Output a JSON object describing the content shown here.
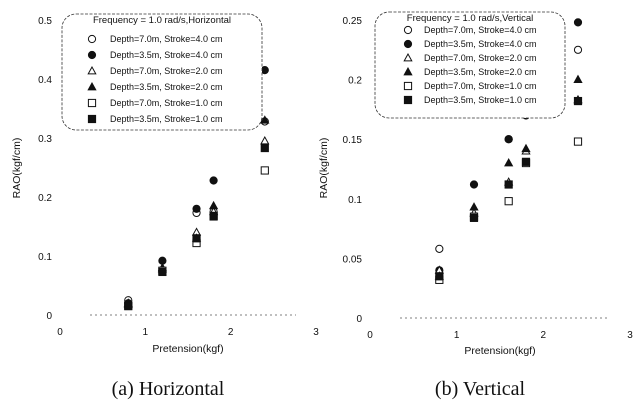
{
  "chart_data": [
    {
      "type": "scatter",
      "caption": "(a)  Horizontal",
      "legend_title": "Frequency = 1.0 rad/s,Horizontal",
      "xlabel": "Pretension(kgf)",
      "ylabel": "RAO(kgf/cm)",
      "xlim": [
        0,
        3
      ],
      "ylim": [
        0,
        0.5
      ],
      "xticks": [
        "0",
        "1",
        "2",
        "3"
      ],
      "yticks": [
        "0",
        "0.1",
        "0.2",
        "0.3",
        "0.4",
        "0.5"
      ],
      "legend_position": "top-center",
      "grid": false,
      "series": [
        {
          "name": "Depth=7.0m, Stroke=4.0 cm",
          "marker": "circle-open",
          "x": [
            0.8,
            1.2,
            1.6,
            1.8,
            2.4
          ],
          "y": [
            0.025,
            0.075,
            0.173,
            0.175,
            0.328
          ]
        },
        {
          "name": "Depth=3.5m, Stroke=4.0 cm",
          "marker": "circle-filled",
          "x": [
            0.8,
            1.2,
            1.6,
            1.8,
            2.4
          ],
          "y": [
            0.02,
            0.092,
            0.18,
            0.228,
            0.415
          ]
        },
        {
          "name": "Depth=7.0m, Stroke=2.0 cm",
          "marker": "triangle-open",
          "x": [
            0.8,
            1.2,
            1.6,
            1.8,
            2.4
          ],
          "y": [
            0.02,
            0.08,
            0.14,
            0.175,
            0.295
          ]
        },
        {
          "name": "Depth=3.5m, Stroke=2.0 cm",
          "marker": "triangle-filled",
          "x": [
            0.8,
            1.2,
            1.6,
            1.8,
            2.4
          ],
          "y": [
            0.018,
            0.078,
            0.13,
            0.185,
            0.33
          ]
        },
        {
          "name": "Depth=7.0m, Stroke=1.0 cm",
          "marker": "square-open",
          "x": [
            0.8,
            1.2,
            1.6,
            1.8,
            2.4
          ],
          "y": [
            0.015,
            0.075,
            0.122,
            0.168,
            0.245
          ]
        },
        {
          "name": "Depth=3.5m, Stroke=1.0 cm",
          "marker": "square-filled",
          "x": [
            0.8,
            1.2,
            1.6,
            1.8,
            2.4
          ],
          "y": [
            0.016,
            0.073,
            0.13,
            0.167,
            0.283
          ]
        }
      ]
    },
    {
      "type": "scatter",
      "caption": "(b)  Vertical",
      "legend_title": "Frequency = 1.0 rad/s,Vertical",
      "xlabel": "Pretension(kgf)",
      "ylabel": "RAO(kgf/cm)",
      "xlim": [
        0,
        3
      ],
      "ylim": [
        0,
        0.25
      ],
      "xticks": [
        "0",
        "1",
        "2",
        "3"
      ],
      "yticks": [
        "0",
        "0.05",
        "0.1",
        "0.15",
        "0.2",
        "0.25"
      ],
      "legend_position": "top-center",
      "grid": false,
      "series": [
        {
          "name": "Depth=7.0m, Stroke=4.0 cm",
          "marker": "circle-open",
          "x": [
            0.8,
            1.2,
            1.6,
            1.8,
            2.4
          ],
          "y": [
            0.058,
            0.085,
            0.15,
            0.17,
            0.225
          ]
        },
        {
          "name": "Depth=3.5m, Stroke=4.0 cm",
          "marker": "circle-filled",
          "x": [
            0.8,
            1.2,
            1.6,
            1.8,
            2.4
          ],
          "y": [
            0.04,
            0.112,
            0.15,
            0.17,
            0.248
          ]
        },
        {
          "name": "Depth=7.0m, Stroke=2.0 cm",
          "marker": "triangle-open",
          "x": [
            0.8,
            1.2,
            1.6,
            1.8,
            2.4
          ],
          "y": [
            0.04,
            0.088,
            0.114,
            0.14,
            0.183
          ]
        },
        {
          "name": "Depth=3.5m, Stroke=2.0 cm",
          "marker": "triangle-filled",
          "x": [
            0.8,
            1.2,
            1.6,
            1.8,
            2.4
          ],
          "y": [
            0.035,
            0.093,
            0.13,
            0.142,
            0.2
          ]
        },
        {
          "name": "Depth=7.0m, Stroke=1.0 cm",
          "marker": "square-open",
          "x": [
            0.8,
            1.2,
            1.6,
            1.8,
            2.4
          ],
          "y": [
            0.032,
            0.085,
            0.098,
            0.13,
            0.148
          ]
        },
        {
          "name": "Depth=3.5m, Stroke=1.0 cm",
          "marker": "square-filled",
          "x": [
            0.8,
            1.2,
            1.6,
            1.8,
            2.4
          ],
          "y": [
            0.035,
            0.084,
            0.112,
            0.131,
            0.182
          ]
        }
      ]
    }
  ]
}
